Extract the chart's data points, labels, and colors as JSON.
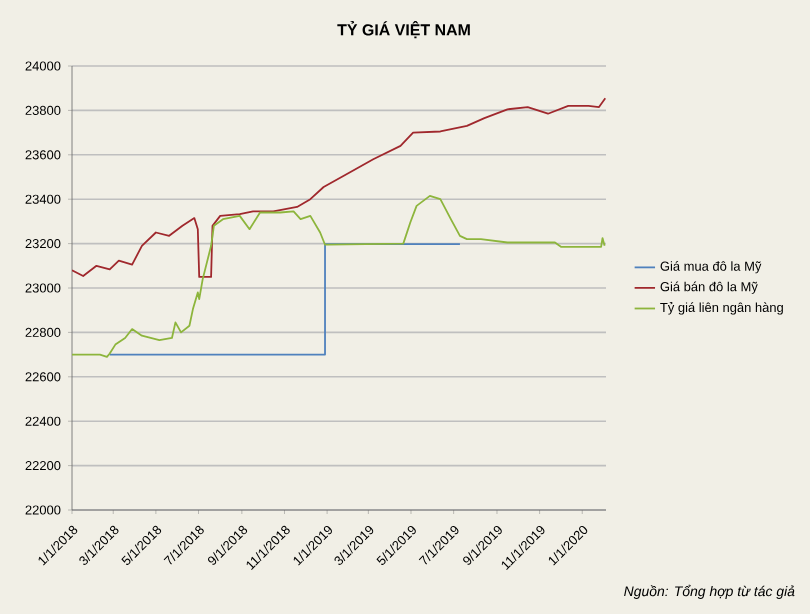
{
  "chart_data": {
    "type": "line",
    "title": "TỶ GIÁ VIỆT NAM",
    "xlim": [
      "2018-01-01",
      "2020-02-04"
    ],
    "xticks": [
      {
        "value": "2018-01-01",
        "label": "1/1/2018"
      },
      {
        "value": "2018-03-01",
        "label": "3/1/2018"
      },
      {
        "value": "2018-05-01",
        "label": "5/1/2018"
      },
      {
        "value": "2018-07-01",
        "label": "7/1/2018"
      },
      {
        "value": "2018-09-01",
        "label": "9/1/2018"
      },
      {
        "value": "2018-11-01",
        "label": "11/1/2018"
      },
      {
        "value": "2019-01-01",
        "label": "1/1/2019"
      },
      {
        "value": "2019-03-01",
        "label": "3/1/2019"
      },
      {
        "value": "2019-05-01",
        "label": "5/1/2019"
      },
      {
        "value": "2019-07-01",
        "label": "7/1/2019"
      },
      {
        "value": "2019-09-01",
        "label": "9/1/2019"
      },
      {
        "value": "2019-11-01",
        "label": "11/1/2019"
      },
      {
        "value": "2020-01-01",
        "label": "1/1/2020"
      }
    ],
    "ylim": [
      22000,
      24000
    ],
    "yticks": [
      22000,
      22200,
      22400,
      22600,
      22800,
      23000,
      23200,
      23400,
      23600,
      23800,
      24000
    ],
    "grid": "y",
    "legend": "right",
    "marker": "none",
    "line_style": "solid",
    "annotations": [
      "Nguồn: Tổng hợp từ tác giả"
    ],
    "series": [
      {
        "name": "Giá mua đô la Mỹ",
        "color": "#4f81bd",
        "x": [
          "2018-02-24",
          "2018-12-29",
          "2018-12-29",
          "2019-07-10"
        ],
        "values": [
          22700,
          22700,
          23198,
          23198
        ]
      },
      {
        "name": "Giá bán đô la Mỹ",
        "color": "#a0282d",
        "x": [
          "2018-01-01",
          "2018-01-17",
          "2018-02-05",
          "2018-02-24",
          "2018-03-09",
          "2018-03-28",
          "2018-04-11",
          "2018-05-01",
          "2018-05-20",
          "2018-06-08",
          "2018-06-25",
          "2018-06-30",
          "2018-07-02",
          "2018-07-19",
          "2018-07-21",
          "2018-08-01",
          "2018-08-29",
          "2018-09-17",
          "2018-10-16",
          "2018-11-19",
          "2018-12-08",
          "2018-12-27",
          "2019-01-30",
          "2019-03-08",
          "2019-04-16",
          "2019-05-04",
          "2019-06-12",
          "2019-07-20",
          "2019-08-14",
          "2019-09-16",
          "2019-10-15",
          "2019-11-13",
          "2019-12-12",
          "2020-01-10",
          "2020-01-25",
          "2020-02-03"
        ],
        "values": [
          23080,
          23054,
          23100,
          23084,
          23123,
          23105,
          23190,
          23250,
          23235,
          23280,
          23315,
          23265,
          23050,
          23050,
          23280,
          23325,
          23333,
          23345,
          23345,
          23365,
          23400,
          23455,
          23515,
          23580,
          23640,
          23700,
          23705,
          23730,
          23765,
          23805,
          23815,
          23785,
          23820,
          23820,
          23815,
          23855
        ]
      },
      {
        "name": "Tỷ giá liên ngân hàng",
        "color": "#8db53c",
        "x": [
          "2018-01-01",
          "2018-02-10",
          "2018-02-20",
          "2018-02-24",
          "2018-03-04",
          "2018-03-18",
          "2018-03-28",
          "2018-04-11",
          "2018-05-06",
          "2018-05-24",
          "2018-05-29",
          "2018-06-06",
          "2018-06-18",
          "2018-06-23",
          "2018-06-30",
          "2018-07-02",
          "2018-07-07",
          "2018-07-19",
          "2018-07-23",
          "2018-08-05",
          "2018-08-29",
          "2018-09-12",
          "2018-09-27",
          "2018-10-26",
          "2018-11-14",
          "2018-11-24",
          "2018-12-08",
          "2018-12-22",
          "2018-12-29",
          "2019-01-02",
          "2019-04-20",
          "2019-04-30",
          "2019-05-09",
          "2019-05-28",
          "2019-06-12",
          "2019-06-27",
          "2019-07-10",
          "2019-07-20",
          "2019-08-09",
          "2019-09-16",
          "2019-11-23",
          "2019-12-02",
          "2020-01-28",
          "2020-01-30",
          "2020-02-02"
        ],
        "values": [
          22700,
          22700,
          22690,
          22705,
          22745,
          22775,
          22815,
          22785,
          22765,
          22775,
          22845,
          22800,
          22830,
          22905,
          22980,
          22950,
          23040,
          23190,
          23280,
          23310,
          23325,
          23265,
          23340,
          23340,
          23345,
          23310,
          23325,
          23250,
          23195,
          23195,
          23200,
          23295,
          23370,
          23415,
          23400,
          23310,
          23235,
          23220,
          23220,
          23205,
          23205,
          23185,
          23185,
          23225,
          23190
        ]
      }
    ]
  }
}
